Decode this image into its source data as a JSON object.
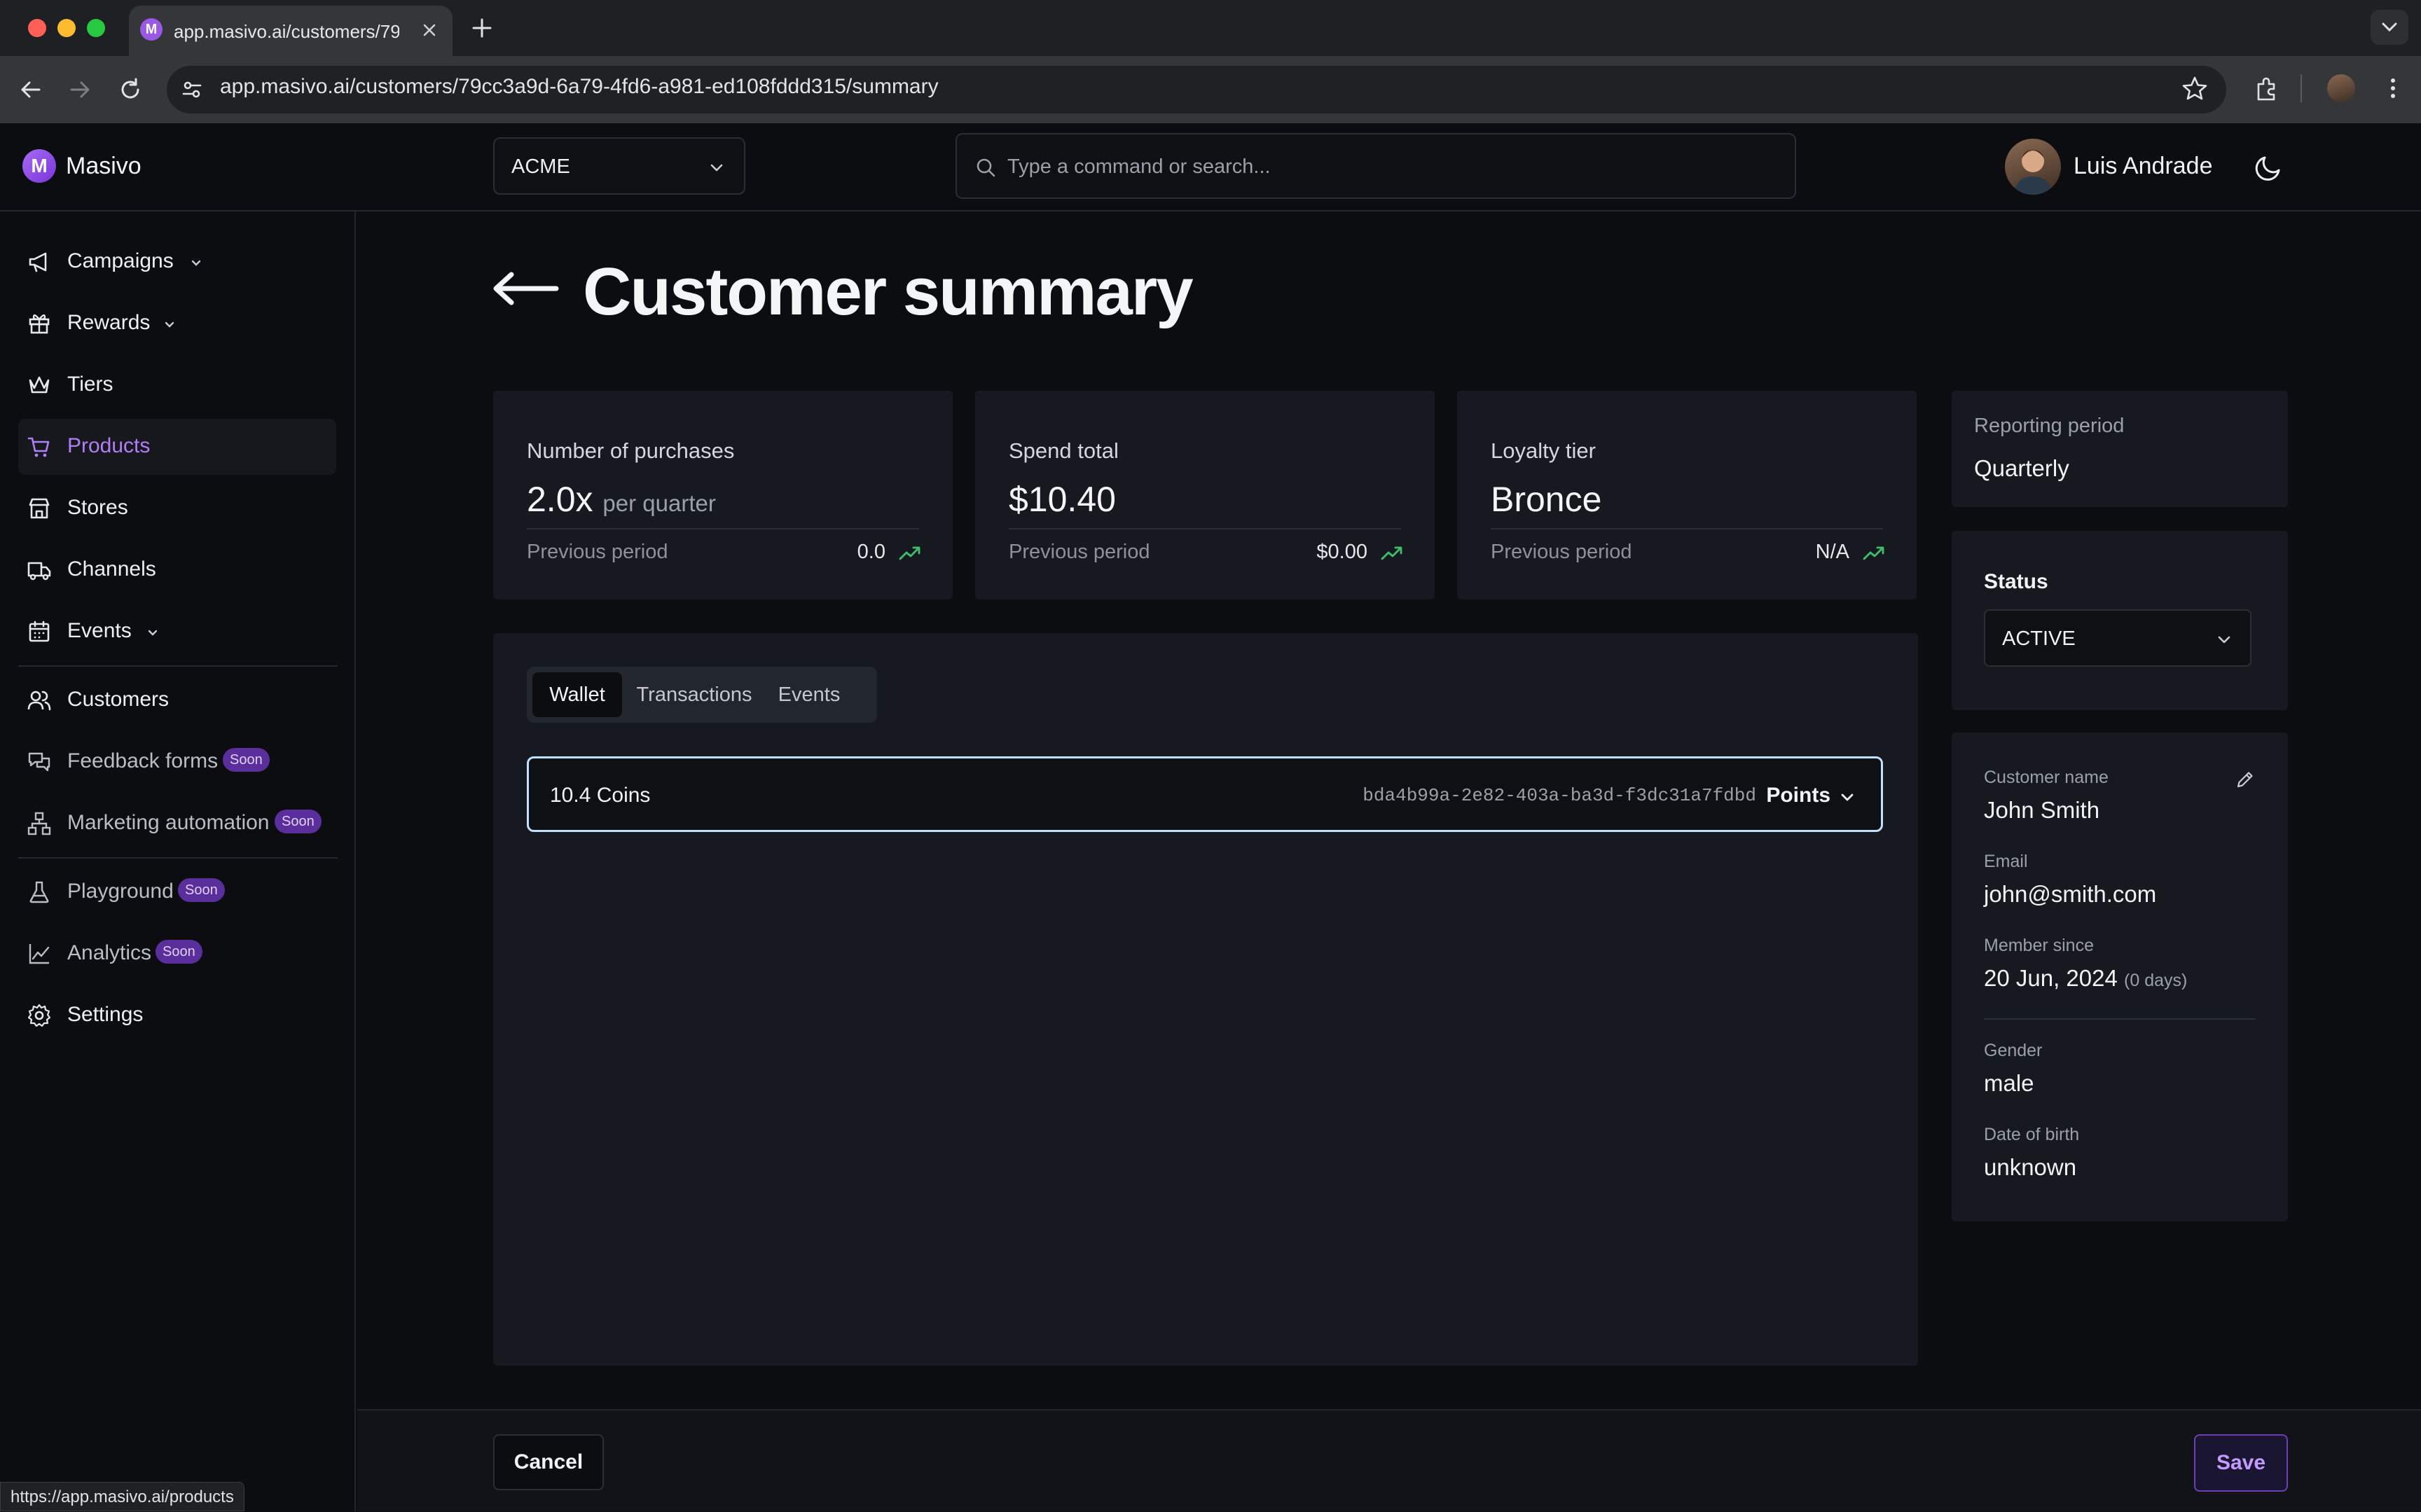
{
  "browser": {
    "tab_title": "app.masivo.ai/customers/79c",
    "url": "app.masivo.ai/customers/79cc3a9d-6a79-4fd6-a981-ed108fddd315/summary",
    "status_url": "https://app.masivo.ai/products"
  },
  "header": {
    "logo_letter": "M",
    "logo_text": "Masivo",
    "org": "ACME",
    "search_placeholder": "Type a command or search...",
    "user_name": "Luis Andrade"
  },
  "sidebar": {
    "items": [
      {
        "label": "Campaigns",
        "icon": "megaphone-icon"
      },
      {
        "label": "Rewards",
        "icon": "gift-icon"
      },
      {
        "label": "Tiers",
        "icon": "crown-icon"
      },
      {
        "label": "Products",
        "icon": "cart-icon",
        "active": true
      },
      {
        "label": "Stores",
        "icon": "store-icon"
      },
      {
        "label": "Channels",
        "icon": "truck-icon"
      },
      {
        "label": "Events",
        "icon": "calendar-icon"
      },
      {
        "label": "Customers",
        "icon": "users-icon"
      },
      {
        "label": "Feedback forms",
        "icon": "chat-icon",
        "badge": "Soon"
      },
      {
        "label": "Marketing automation",
        "icon": "workflow-icon",
        "badge": "Soon"
      },
      {
        "label": "Playground",
        "icon": "flask-icon",
        "badge": "Soon"
      },
      {
        "label": "Analytics",
        "icon": "chart-line-icon",
        "badge": "Soon"
      },
      {
        "label": "Settings",
        "icon": "gear-icon"
      }
    ]
  },
  "page": {
    "title": "Customer summary"
  },
  "stats": [
    {
      "label": "Number of purchases",
      "value": "2.0x",
      "unit": "per quarter",
      "prev_label": "Previous period",
      "prev_value": "0.0"
    },
    {
      "label": "Spend total",
      "value": "$10.40",
      "unit": "",
      "prev_label": "Previous period",
      "prev_value": "$0.00"
    },
    {
      "label": "Loyalty tier",
      "value": "Bronce",
      "unit": "",
      "prev_label": "Previous period",
      "prev_value": "N/A"
    }
  ],
  "tabs": [
    "Wallet",
    "Transactions",
    "Events"
  ],
  "wallet": {
    "amount": "10.4 Coins",
    "id": "bda4b99a-2e82-403a-ba3d-f3dc31a7fdbd",
    "type": "Points"
  },
  "reporting": {
    "label": "Reporting period",
    "value": "Quarterly"
  },
  "status": {
    "label": "Status",
    "value": "ACTIVE"
  },
  "customer": {
    "name_label": "Customer name",
    "name": "John Smith",
    "email_label": "Email",
    "email": "john@smith.com",
    "member_label": "Member since",
    "member_since": "20 Jun, 2024",
    "member_days": "(0 days)",
    "gender_label": "Gender",
    "gender": "male",
    "dob_label": "Date of birth",
    "dob": "unknown"
  },
  "footer": {
    "cancel": "Cancel",
    "save": "Save"
  },
  "colors": {
    "accent": "#b07ef5",
    "trend_up": "#3fbf6a",
    "focus_border": "#bfe0ff",
    "soon_badge": "#5a2f9c"
  }
}
